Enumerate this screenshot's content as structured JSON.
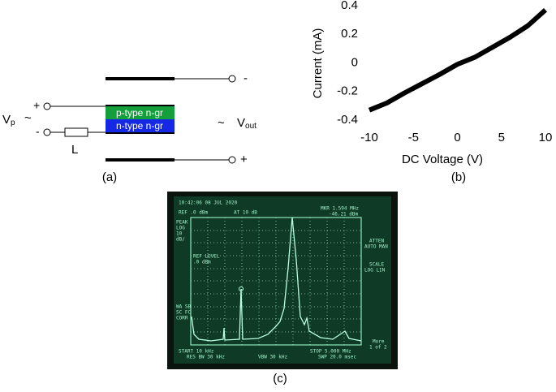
{
  "panel_a": {
    "caption": "(a)",
    "top_terminal": "-",
    "bottom_terminal": "+",
    "input_plus": "+",
    "input_minus": "-",
    "source": {
      "label": "V",
      "subscript": "p"
    },
    "output": {
      "label": "V",
      "subscript": "out"
    },
    "p_layer": "p-type n-gr",
    "n_layer": "n-type n-gr",
    "inductor": "L"
  },
  "chart_data": {
    "type": "line",
    "caption": "(b)",
    "x_label": "DC Voltage (V)",
    "y_label": "Current (mA)",
    "x": [
      -10,
      -8,
      -6,
      -4,
      -2,
      0,
      2,
      4,
      6,
      8,
      10
    ],
    "series": [
      {
        "color": "#000000",
        "values": [
          -0.33,
          -0.28,
          -0.21,
          -0.145,
          -0.08,
          -0.01,
          0.04,
          0.11,
          0.18,
          0.26,
          0.37
        ]
      }
    ],
    "xlim": [
      -10,
      10
    ],
    "xticks": [
      -10,
      -5,
      0,
      5,
      10
    ],
    "ylim": [
      -0.4,
      0.4
    ],
    "yticks": [
      -0.4,
      -0.2,
      0,
      0.2,
      0.4
    ],
    "grid": false
  },
  "panel_c": {
    "caption": "(c)",
    "timestamp": "10:42:06 08 JUL 2020",
    "ref": "REF .0 dBm",
    "atten_top": "AT 10 dB",
    "marker_freq": "MKR 1.594 MHz",
    "marker_level": "-46.21 dBm",
    "left_labels": [
      "PEAK",
      "LOG",
      "10",
      "dB/"
    ],
    "ref_level": [
      "REF LEVEL",
      ".0 dBm"
    ],
    "left_bottom": [
      "WA SB",
      "SC FC",
      "CORR"
    ],
    "right_labels": [
      "ATTEN",
      "AUTO MAN",
      "SCALE",
      "LOG LIN"
    ],
    "more": [
      "More",
      "1 of 2"
    ],
    "start": "START 10 kHz",
    "res_bw": "RES BW 30 kHz",
    "vbw": "VBW 30 kHz",
    "stop": "STOP 5.000 MHz",
    "sweep": "SWP 20.0 msec"
  }
}
